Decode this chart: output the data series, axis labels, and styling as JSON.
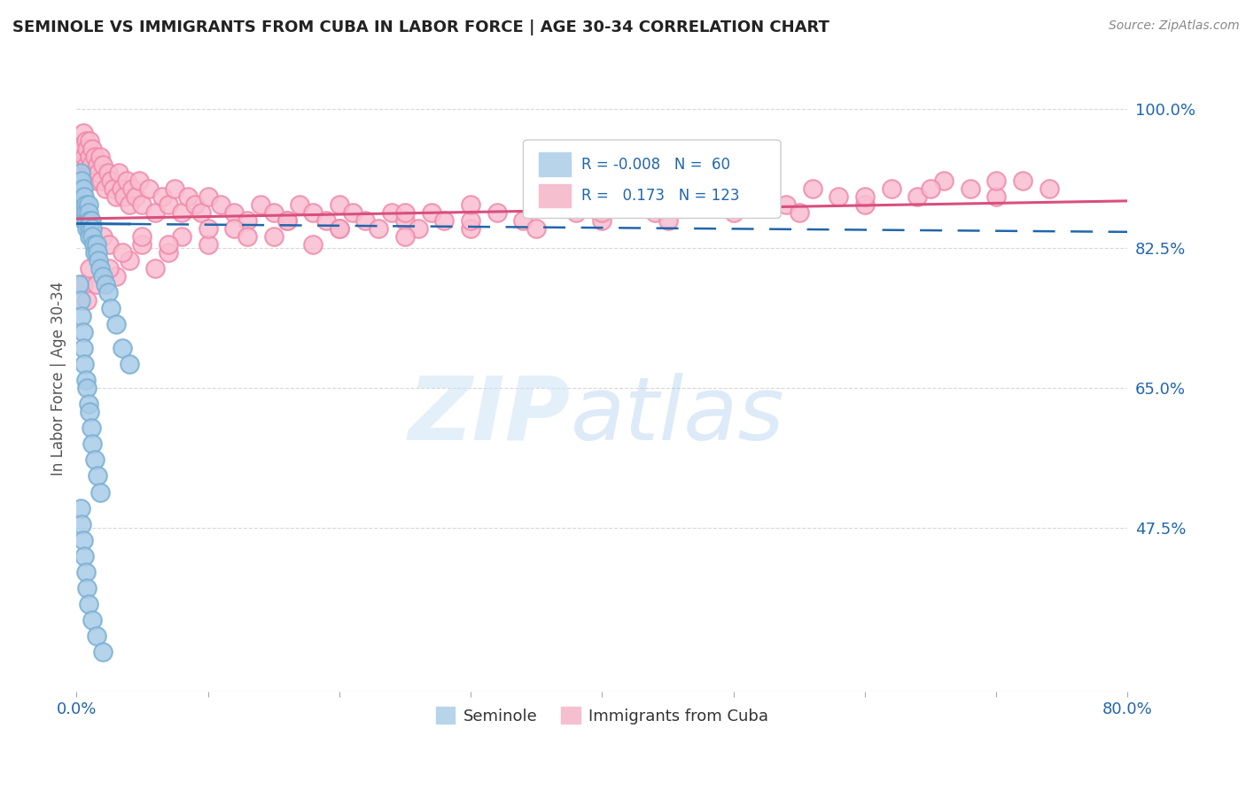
{
  "title": "SEMINOLE VS IMMIGRANTS FROM CUBA IN LABOR FORCE | AGE 30-34 CORRELATION CHART",
  "source": "Source: ZipAtlas.com",
  "ylabel": "In Labor Force | Age 30-34",
  "x_min": 0.0,
  "x_max": 0.8,
  "y_min": 0.27,
  "y_max": 1.055,
  "y_tick_right_values": [
    0.475,
    0.65,
    0.825,
    1.0
  ],
  "y_tick_right_labels": [
    "47.5%",
    "65.0%",
    "82.5%",
    "100.0%"
  ],
  "legend_seminole_label": "Seminole",
  "legend_cuba_label": "Immigrants from Cuba",
  "r_seminole": -0.008,
  "n_seminole": 60,
  "r_cuba": 0.173,
  "n_cuba": 123,
  "blue_color": "#a8cce8",
  "blue_edge_color": "#7ab0d4",
  "pink_color": "#f9bdd0",
  "pink_edge_color": "#f08aaa",
  "blue_line_color": "#2166ac",
  "pink_line_color": "#d94f7e",
  "background_color": "#ffffff",
  "grid_color": "#d8d8d8",
  "seminole_x": [
    0.002,
    0.003,
    0.004,
    0.004,
    0.004,
    0.005,
    0.005,
    0.005,
    0.006,
    0.006,
    0.007,
    0.007,
    0.008,
    0.008,
    0.009,
    0.009,
    0.01,
    0.01,
    0.01,
    0.011,
    0.012,
    0.012,
    0.013,
    0.014,
    0.015,
    0.016,
    0.017,
    0.018,
    0.02,
    0.022,
    0.024,
    0.026,
    0.03,
    0.035,
    0.04,
    0.002,
    0.003,
    0.004,
    0.005,
    0.005,
    0.006,
    0.007,
    0.008,
    0.009,
    0.01,
    0.011,
    0.012,
    0.014,
    0.016,
    0.018,
    0.003,
    0.004,
    0.005,
    0.006,
    0.007,
    0.008,
    0.009,
    0.012,
    0.015,
    0.02
  ],
  "seminole_y": [
    0.9,
    0.92,
    0.88,
    0.91,
    0.89,
    0.88,
    0.87,
    0.9,
    0.86,
    0.89,
    0.88,
    0.87,
    0.86,
    0.85,
    0.88,
    0.87,
    0.86,
    0.85,
    0.84,
    0.86,
    0.85,
    0.84,
    0.83,
    0.82,
    0.83,
    0.82,
    0.81,
    0.8,
    0.79,
    0.78,
    0.77,
    0.75,
    0.73,
    0.7,
    0.68,
    0.78,
    0.76,
    0.74,
    0.72,
    0.7,
    0.68,
    0.66,
    0.65,
    0.63,
    0.62,
    0.6,
    0.58,
    0.56,
    0.54,
    0.52,
    0.5,
    0.48,
    0.46,
    0.44,
    0.42,
    0.4,
    0.38,
    0.36,
    0.34,
    0.32
  ],
  "cuba_x": [
    0.003,
    0.004,
    0.005,
    0.006,
    0.007,
    0.008,
    0.008,
    0.009,
    0.01,
    0.01,
    0.011,
    0.012,
    0.013,
    0.014,
    0.015,
    0.016,
    0.017,
    0.018,
    0.019,
    0.02,
    0.022,
    0.024,
    0.026,
    0.028,
    0.03,
    0.032,
    0.034,
    0.036,
    0.038,
    0.04,
    0.042,
    0.045,
    0.048,
    0.05,
    0.055,
    0.06,
    0.065,
    0.07,
    0.075,
    0.08,
    0.085,
    0.09,
    0.095,
    0.1,
    0.11,
    0.12,
    0.13,
    0.14,
    0.15,
    0.16,
    0.17,
    0.18,
    0.19,
    0.2,
    0.21,
    0.22,
    0.23,
    0.24,
    0.25,
    0.26,
    0.27,
    0.28,
    0.3,
    0.32,
    0.34,
    0.36,
    0.38,
    0.4,
    0.42,
    0.44,
    0.46,
    0.48,
    0.5,
    0.52,
    0.54,
    0.56,
    0.58,
    0.6,
    0.62,
    0.64,
    0.66,
    0.68,
    0.7,
    0.72,
    0.74,
    0.005,
    0.01,
    0.015,
    0.02,
    0.025,
    0.03,
    0.04,
    0.05,
    0.06,
    0.07,
    0.08,
    0.1,
    0.12,
    0.15,
    0.18,
    0.2,
    0.25,
    0.3,
    0.35,
    0.4,
    0.45,
    0.5,
    0.55,
    0.6,
    0.65,
    0.7,
    0.008,
    0.015,
    0.025,
    0.035,
    0.05,
    0.07,
    0.1,
    0.13,
    0.16,
    0.2,
    0.25,
    0.3
  ],
  "cuba_y": [
    0.95,
    0.93,
    0.97,
    0.94,
    0.96,
    0.93,
    0.95,
    0.92,
    0.96,
    0.94,
    0.93,
    0.95,
    0.92,
    0.94,
    0.91,
    0.93,
    0.92,
    0.94,
    0.91,
    0.93,
    0.9,
    0.92,
    0.91,
    0.9,
    0.89,
    0.92,
    0.9,
    0.89,
    0.91,
    0.88,
    0.9,
    0.89,
    0.91,
    0.88,
    0.9,
    0.87,
    0.89,
    0.88,
    0.9,
    0.87,
    0.89,
    0.88,
    0.87,
    0.89,
    0.88,
    0.87,
    0.86,
    0.88,
    0.87,
    0.86,
    0.88,
    0.87,
    0.86,
    0.88,
    0.87,
    0.86,
    0.85,
    0.87,
    0.86,
    0.85,
    0.87,
    0.86,
    0.85,
    0.87,
    0.86,
    0.88,
    0.87,
    0.86,
    0.88,
    0.87,
    0.89,
    0.88,
    0.87,
    0.89,
    0.88,
    0.9,
    0.89,
    0.88,
    0.9,
    0.89,
    0.91,
    0.9,
    0.89,
    0.91,
    0.9,
    0.78,
    0.8,
    0.82,
    0.84,
    0.83,
    0.79,
    0.81,
    0.83,
    0.8,
    0.82,
    0.84,
    0.83,
    0.85,
    0.84,
    0.83,
    0.85,
    0.84,
    0.86,
    0.85,
    0.87,
    0.86,
    0.88,
    0.87,
    0.89,
    0.9,
    0.91,
    0.76,
    0.78,
    0.8,
    0.82,
    0.84,
    0.83,
    0.85,
    0.84,
    0.86,
    0.85,
    0.87,
    0.88
  ]
}
